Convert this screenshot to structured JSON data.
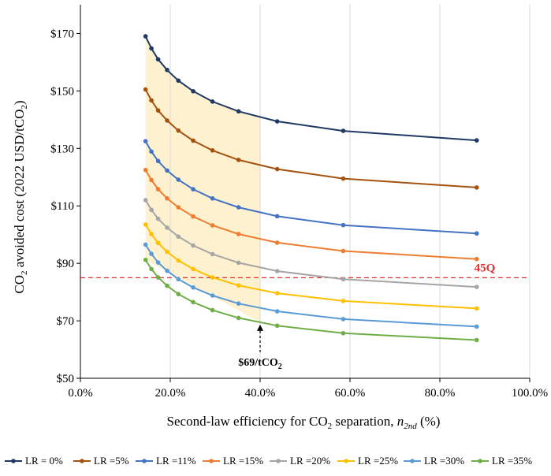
{
  "chart_data": {
    "type": "line",
    "title": "",
    "xlabel": "Second-law efficiency for CO₂ separation, n₂nd (%)",
    "xlabel_parts": {
      "main": "Second-law efficiency for CO",
      "sub": "2",
      "rest": " separation, ",
      "var": "n",
      "var_sub": "2nd",
      "unit": "  (%)"
    },
    "ylabel": "CO₂ avoided cost  (2022 USD/tCO₂)",
    "ylabel_parts": {
      "a": "CO",
      "b": "2",
      "c": " avoided cost  (2022 USD/tCO",
      "d": "2",
      "e": ")"
    },
    "xlim": [
      0,
      100
    ],
    "ylim": [
      50,
      180
    ],
    "x_ticks": [
      0,
      20,
      40,
      60,
      80,
      100
    ],
    "x_tick_labels": [
      "0.0%",
      "20.0%",
      "40.0%",
      "60.0%",
      "80.0%",
      "100.0%"
    ],
    "y_ticks": [
      50,
      70,
      90,
      110,
      130,
      150,
      170
    ],
    "y_tick_labels": [
      "$50",
      "$70",
      "$90",
      "$110",
      "$130",
      "$150",
      "$170"
    ],
    "grid": "vertical",
    "shaded_region": {
      "x_range": [
        14.5,
        40
      ],
      "color": "#fdf1cf"
    },
    "reference_line": {
      "y": 85,
      "label": "45Q",
      "color": "#e03030",
      "style": "dashed"
    },
    "annotation": {
      "label_main": "$69/tCO",
      "label_sub": "2",
      "x": 40,
      "y": 69.5
    },
    "x": [
      14.5,
      15.8,
      17.3,
      19.3,
      21.8,
      25.1,
      29.4,
      35.2,
      43.8,
      58.5,
      88.2
    ],
    "series": [
      {
        "name": "LR = 0%",
        "color": "#203864",
        "values": [
          169.0,
          164.8,
          161.0,
          157.3,
          153.6,
          149.9,
          146.3,
          142.9,
          139.4,
          136.1,
          132.8
        ]
      },
      {
        "name": "LR =5%",
        "color": "#a5520f",
        "values": [
          150.5,
          146.7,
          143.2,
          139.7,
          136.2,
          132.7,
          129.3,
          126.0,
          122.8,
          119.5,
          116.4
        ]
      },
      {
        "name": "LR =11%",
        "color": "#4472c4",
        "values": [
          132.5,
          128.9,
          125.6,
          122.3,
          119.1,
          115.8,
          112.6,
          109.5,
          106.4,
          103.3,
          100.4
        ]
      },
      {
        "name": "LR =15%",
        "color": "#ed7d31",
        "values": [
          122.5,
          119.0,
          115.8,
          112.6,
          109.5,
          106.3,
          103.2,
          100.2,
          97.2,
          94.3,
          91.5
        ]
      },
      {
        "name": "LR =20%",
        "color": "#a5a5a5",
        "values": [
          112.0,
          108.6,
          105.5,
          102.4,
          99.3,
          96.2,
          93.2,
          90.2,
          87.3,
          84.5,
          81.8
        ]
      },
      {
        "name": "LR =25%",
        "color": "#ffc000",
        "values": [
          103.5,
          100.2,
          97.1,
          94.0,
          91.0,
          88.0,
          85.1,
          82.3,
          79.6,
          76.9,
          74.3
        ]
      },
      {
        "name": "LR =30%",
        "color": "#5b9bd5",
        "values": [
          96.5,
          93.3,
          90.3,
          87.4,
          84.5,
          81.6,
          78.8,
          76.0,
          73.3,
          70.6,
          68.0
        ]
      },
      {
        "name": "LR =35%",
        "color": "#70ad47",
        "values": [
          91.2,
          88.0,
          85.1,
          82.2,
          79.3,
          76.5,
          73.7,
          71.0,
          68.3,
          65.7,
          63.3
        ]
      }
    ]
  }
}
